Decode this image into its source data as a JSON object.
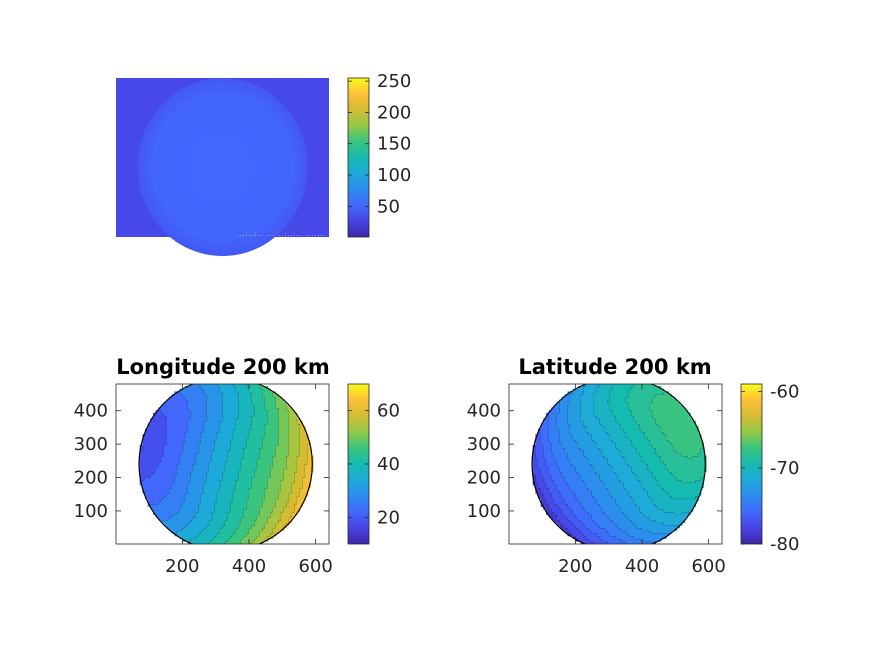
{
  "colors": {
    "background": "#ffffff",
    "axis": "#262626",
    "colormap": [
      "#3e26a8",
      "#4743e4",
      "#4268fe",
      "#2d8bef",
      "#1eaad9",
      "#16bbb0",
      "#3bc47f",
      "#91c948",
      "#d3bc33",
      "#fdc03a",
      "#f9fb15"
    ]
  },
  "chart_data": [
    {
      "type": "heatmap",
      "description_source": "image panel",
      "title": "",
      "xlabel": "",
      "ylabel": "",
      "show_axes": false,
      "image": {
        "background_value": 30,
        "disk_value": 52,
        "disk_edge_value": 40,
        "stamp_text": "...:..:..  ...  ..:..:.. ......."
      },
      "colorbar": {
        "range": [
          1,
          255
        ],
        "ticks": [
          50,
          100,
          150,
          200,
          250
        ],
        "tick_labels": [
          "50",
          "100",
          "150",
          "200",
          "250"
        ]
      }
    },
    {
      "type": "heatmap",
      "subtype": "contour",
      "title": "Longitude 200 km",
      "xlabel": "",
      "ylabel": "",
      "xlim": [
        1,
        640
      ],
      "ylim": [
        1,
        480
      ],
      "x_ticks": [
        200,
        400,
        600
      ],
      "x_tick_labels": [
        "200",
        "400",
        "600"
      ],
      "y_ticks": [
        100,
        200,
        300,
        400
      ],
      "y_tick_labels": [
        "100",
        "200",
        "300",
        "400"
      ],
      "disk": {
        "cx": 330,
        "cy": 240,
        "r": 260
      },
      "field": {
        "base": 36,
        "gx": 0.085,
        "gy": -0.022,
        "rim_boost": 28,
        "min": 10,
        "max": 70
      },
      "contour_interval": 4,
      "colorbar": {
        "range": [
          10,
          70
        ],
        "ticks": [
          20,
          40,
          60
        ],
        "tick_labels": [
          "20",
          "40",
          "60"
        ]
      }
    },
    {
      "type": "heatmap",
      "subtype": "contour",
      "title": "Latitude 200 km",
      "xlabel": "",
      "ylabel": "",
      "xlim": [
        1,
        640
      ],
      "ylim": [
        1,
        480
      ],
      "x_ticks": [
        200,
        400,
        600
      ],
      "x_tick_labels": [
        "200",
        "400",
        "600"
      ],
      "y_ticks": [
        100,
        200,
        300,
        400
      ],
      "y_tick_labels": [
        "100",
        "200",
        "300",
        "400"
      ],
      "disk": {
        "cx": 330,
        "cy": 240,
        "r": 260
      },
      "field": {
        "base": -71.5,
        "gx": 0.018,
        "gy": 0.012,
        "rim_boost": -10,
        "min": -80,
        "max": -59
      },
      "contour_interval": 1,
      "colorbar": {
        "range": [
          -80,
          -59
        ],
        "ticks": [
          -80,
          -70,
          -60
        ],
        "tick_labels": [
          "-80",
          "-70",
          "-60"
        ]
      }
    }
  ]
}
